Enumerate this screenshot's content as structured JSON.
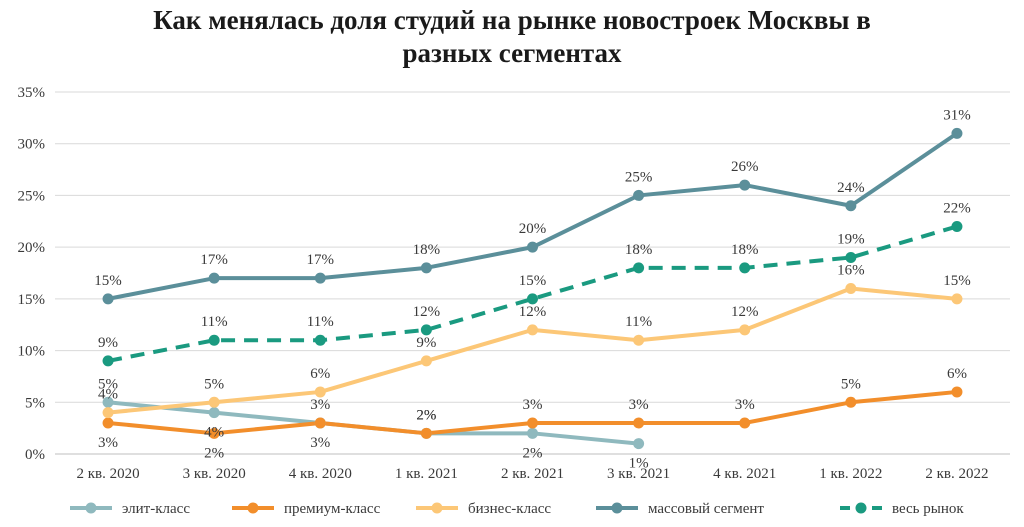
{
  "chart_data": {
    "type": "line",
    "title_lines": [
      "Как менялась доля студий на рынке новостроек Москвы в",
      "разных сегментах"
    ],
    "categories": [
      "2 кв. 2020",
      "3 кв. 2020",
      "4 кв. 2020",
      "1 кв. 2021",
      "2 кв. 2021",
      "3 кв. 2021",
      "4 кв. 2021",
      "1 кв. 2022",
      "2 кв. 2022"
    ],
    "y_ticks": [
      "0%",
      "5%",
      "10%",
      "15%",
      "20%",
      "25%",
      "30%",
      "35%"
    ],
    "ylim": [
      0,
      35
    ],
    "grid": true,
    "legend_position": "bottom",
    "series": [
      {
        "name": "элит-класс",
        "color": "#8fb9be",
        "dashed": false,
        "values": [
          5,
          4,
          3,
          2,
          2,
          1,
          null,
          null,
          null
        ],
        "labels": [
          "5%",
          "4%",
          "3%",
          "2%",
          "2%",
          "1%",
          null,
          null,
          null
        ],
        "label_pos": [
          "above",
          "below",
          "above",
          "above",
          "below",
          "below",
          null,
          null,
          null
        ]
      },
      {
        "name": "премиум-класс",
        "color": "#f28e2b",
        "dashed": false,
        "values": [
          3,
          2,
          3,
          2,
          3,
          3,
          3,
          5,
          6
        ],
        "labels": [
          "3%",
          "2%",
          "3%",
          "2%",
          "3%",
          "3%",
          "3%",
          "5%",
          "6%"
        ],
        "label_pos": [
          "below",
          "below",
          "below",
          "above",
          "above",
          "above",
          "above",
          "above",
          "above"
        ]
      },
      {
        "name": "бизнес-класс",
        "color": "#fcc777",
        "dashed": false,
        "values": [
          4,
          5,
          6,
          9,
          12,
          11,
          12,
          16,
          15
        ],
        "labels": [
          "4%",
          "5%",
          "6%",
          "9%",
          "12%",
          "11%",
          "12%",
          "16%",
          "15%"
        ],
        "label_pos": [
          "above",
          "above",
          "above",
          "above",
          "above",
          "above",
          "above",
          "above",
          "above"
        ]
      },
      {
        "name": "массовый сегмент",
        "color": "#5b8f9a",
        "dashed": false,
        "values": [
          15,
          17,
          17,
          18,
          20,
          25,
          26,
          24,
          31
        ],
        "labels": [
          "15%",
          "17%",
          "17%",
          "18%",
          "20%",
          "25%",
          "26%",
          "24%",
          "31%"
        ],
        "label_pos": [
          "above",
          "above",
          "above",
          "above",
          "above",
          "above",
          "above",
          "above",
          "above"
        ]
      },
      {
        "name": "весь рынок",
        "color": "#1a9a80",
        "dashed": true,
        "values": [
          9,
          11,
          11,
          12,
          15,
          18,
          18,
          19,
          22
        ],
        "labels": [
          "9%",
          "11%",
          "11%",
          "12%",
          "15%",
          "18%",
          "18%",
          "19%",
          "22%"
        ],
        "label_pos": [
          "above",
          "above",
          "above",
          "above",
          "above",
          "above",
          "above",
          "above",
          "above"
        ]
      }
    ]
  }
}
